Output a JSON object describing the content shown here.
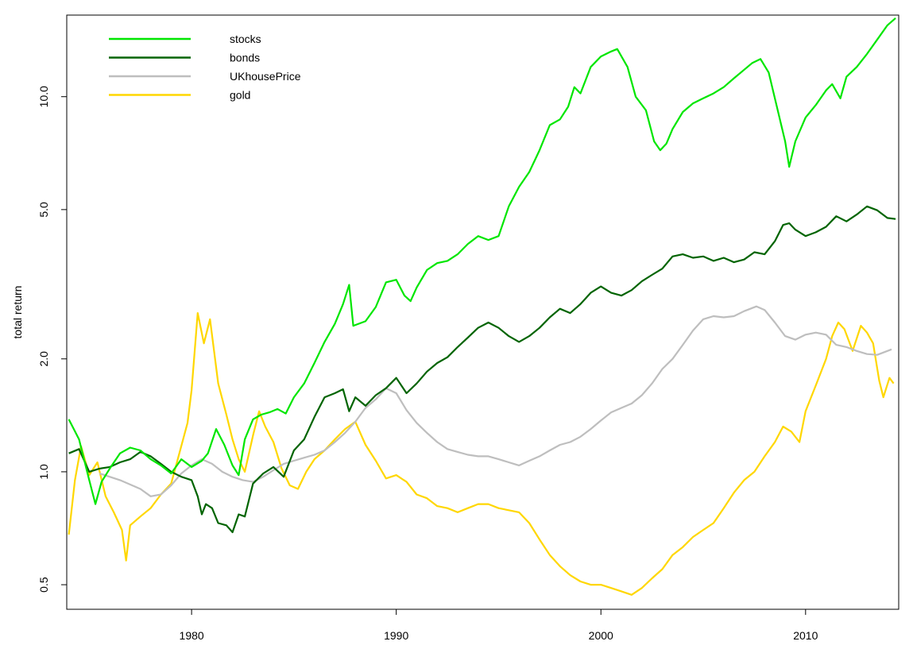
{
  "chart_data": {
    "type": "line",
    "title": "",
    "xlabel": "",
    "ylabel": "total return",
    "y_scale": "log",
    "xlim": [
      1973.9,
      2014.55
    ],
    "ylim": [
      0.43,
      16.5
    ],
    "x_ticks": [
      1980,
      1990,
      2000,
      2010
    ],
    "x_tick_labels": [
      "1980",
      "1990",
      "2000",
      "2010"
    ],
    "y_ticks": [
      0.5,
      1.0,
      2.0,
      5.0,
      10.0
    ],
    "y_tick_labels": [
      "0.5",
      "1.0",
      "2.0",
      "5.0",
      "10.0"
    ],
    "grid": false,
    "legend_position": "top-left",
    "series": [
      {
        "name": "stocks",
        "color": "#00e600",
        "x": [
          1974.0,
          1974.5,
          1975.0,
          1975.3,
          1975.6,
          1976.0,
          1976.5,
          1977.0,
          1977.5,
          1978.0,
          1978.5,
          1979.0,
          1979.5,
          1980.0,
          1980.5,
          1980.8,
          1981.2,
          1981.6,
          1982.0,
          1982.3,
          1982.6,
          1983.0,
          1983.4,
          1983.8,
          1984.2,
          1984.6,
          1985.0,
          1985.5,
          1986.0,
          1986.5,
          1987.0,
          1987.4,
          1987.7,
          1987.9,
          1988.5,
          1989.0,
          1989.5,
          1990.0,
          1990.4,
          1990.7,
          1991.0,
          1991.5,
          1992.0,
          1992.5,
          1993.0,
          1993.5,
          1994.0,
          1994.5,
          1995.0,
          1995.5,
          1996.0,
          1996.5,
          1997.0,
          1997.5,
          1998.0,
          1998.4,
          1998.7,
          1999.0,
          1999.5,
          2000.0,
          2000.5,
          2000.8,
          2001.3,
          2001.7,
          2002.2,
          2002.6,
          2002.9,
          2003.2,
          2003.5,
          2004.0,
          2004.5,
          2005.0,
          2005.5,
          2006.0,
          2006.5,
          2007.0,
          2007.4,
          2007.8,
          2008.2,
          2008.6,
          2009.0,
          2009.2,
          2009.5,
          2010.0,
          2010.5,
          2011.0,
          2011.3,
          2011.7,
          2012.0,
          2012.5,
          2013.0,
          2013.5,
          2014.0,
          2014.4
        ],
        "values": [
          1.38,
          1.22,
          0.95,
          0.82,
          0.94,
          1.02,
          1.12,
          1.16,
          1.14,
          1.08,
          1.04,
          0.99,
          1.08,
          1.03,
          1.07,
          1.12,
          1.3,
          1.18,
          1.04,
          0.98,
          1.22,
          1.38,
          1.42,
          1.44,
          1.47,
          1.43,
          1.58,
          1.72,
          1.95,
          2.22,
          2.48,
          2.8,
          3.15,
          2.45,
          2.52,
          2.75,
          3.2,
          3.25,
          2.95,
          2.85,
          3.1,
          3.45,
          3.6,
          3.65,
          3.8,
          4.05,
          4.25,
          4.15,
          4.25,
          5.1,
          5.75,
          6.3,
          7.2,
          8.4,
          8.7,
          9.4,
          10.6,
          10.2,
          12.0,
          12.8,
          13.2,
          13.4,
          12.0,
          10.0,
          9.2,
          7.6,
          7.2,
          7.5,
          8.2,
          9.1,
          9.6,
          9.9,
          10.2,
          10.6,
          11.2,
          11.8,
          12.3,
          12.6,
          11.6,
          9.4,
          7.6,
          6.5,
          7.6,
          8.8,
          9.5,
          10.4,
          10.8,
          9.9,
          11.3,
          12.0,
          13.0,
          14.2,
          15.5,
          16.2
        ]
      },
      {
        "name": "bonds",
        "color": "#006400",
        "x": [
          1974.0,
          1974.5,
          1975.0,
          1975.5,
          1976.0,
          1976.5,
          1977.0,
          1977.5,
          1978.0,
          1978.5,
          1979.0,
          1979.5,
          1980.0,
          1980.3,
          1980.5,
          1980.7,
          1981.0,
          1981.3,
          1981.7,
          1982.0,
          1982.3,
          1982.6,
          1983.0,
          1983.5,
          1984.0,
          1984.5,
          1985.0,
          1985.5,
          1986.0,
          1986.5,
          1987.0,
          1987.4,
          1987.7,
          1988.0,
          1988.5,
          1989.0,
          1989.5,
          1990.0,
          1990.5,
          1991.0,
          1991.5,
          1992.0,
          1992.5,
          1993.0,
          1993.5,
          1994.0,
          1994.5,
          1995.0,
          1995.5,
          1996.0,
          1996.5,
          1997.0,
          1997.5,
          1998.0,
          1998.5,
          1999.0,
          1999.5,
          2000.0,
          2000.5,
          2001.0,
          2001.5,
          2002.0,
          2002.5,
          2003.0,
          2003.5,
          2004.0,
          2004.5,
          2005.0,
          2005.5,
          2006.0,
          2006.5,
          2007.0,
          2007.5,
          2008.0,
          2008.5,
          2008.9,
          2009.2,
          2009.5,
          2010.0,
          2010.5,
          2011.0,
          2011.5,
          2012.0,
          2012.5,
          2013.0,
          2013.5,
          2014.0,
          2014.4
        ],
        "values": [
          1.12,
          1.15,
          1.0,
          1.02,
          1.03,
          1.06,
          1.08,
          1.13,
          1.1,
          1.05,
          1.0,
          0.97,
          0.95,
          0.86,
          0.77,
          0.82,
          0.8,
          0.73,
          0.72,
          0.69,
          0.77,
          0.76,
          0.93,
          0.99,
          1.03,
          0.97,
          1.14,
          1.22,
          1.4,
          1.58,
          1.62,
          1.66,
          1.45,
          1.58,
          1.5,
          1.6,
          1.67,
          1.78,
          1.62,
          1.72,
          1.85,
          1.95,
          2.02,
          2.15,
          2.28,
          2.42,
          2.5,
          2.42,
          2.3,
          2.22,
          2.3,
          2.42,
          2.58,
          2.72,
          2.65,
          2.8,
          3.0,
          3.12,
          3.0,
          2.95,
          3.05,
          3.22,
          3.35,
          3.48,
          3.75,
          3.8,
          3.72,
          3.75,
          3.65,
          3.72,
          3.62,
          3.68,
          3.85,
          3.8,
          4.12,
          4.55,
          4.6,
          4.42,
          4.25,
          4.35,
          4.5,
          4.8,
          4.65,
          4.85,
          5.1,
          4.98,
          4.75,
          4.72
        ]
      },
      {
        "name": "UKhousePrice",
        "color": "#bebebe",
        "x": [
          1975.5,
          1976.5,
          1977.5,
          1978.0,
          1978.5,
          1979.0,
          1979.5,
          1980.0,
          1980.5,
          1981.0,
          1981.5,
          1982.0,
          1982.5,
          1983.0,
          1983.5,
          1984.0,
          1984.5,
          1985.0,
          1985.5,
          1986.0,
          1986.5,
          1987.0,
          1987.5,
          1988.0,
          1988.5,
          1989.0,
          1989.5,
          1990.0,
          1990.5,
          1991.0,
          1991.5,
          1992.0,
          1992.5,
          1993.0,
          1993.5,
          1994.0,
          1994.5,
          1995.0,
          1995.5,
          1996.0,
          1996.5,
          1997.0,
          1997.5,
          1998.0,
          1998.5,
          1999.0,
          1999.5,
          2000.0,
          2000.5,
          2001.0,
          2001.5,
          2002.0,
          2002.5,
          2003.0,
          2003.5,
          2004.0,
          2004.5,
          2005.0,
          2005.5,
          2006.0,
          2006.5,
          2007.0,
          2007.3,
          2007.6,
          2008.0,
          2008.5,
          2009.0,
          2009.5,
          2010.0,
          2010.5,
          2011.0,
          2011.5,
          2012.0,
          2012.5,
          2013.0,
          2013.5,
          2014.0,
          2014.2
        ],
        "values": [
          0.99,
          0.95,
          0.9,
          0.86,
          0.87,
          0.92,
          0.99,
          1.04,
          1.08,
          1.05,
          1.0,
          0.97,
          0.95,
          0.94,
          0.97,
          1.01,
          1.05,
          1.07,
          1.09,
          1.11,
          1.14,
          1.2,
          1.27,
          1.36,
          1.48,
          1.56,
          1.67,
          1.62,
          1.46,
          1.35,
          1.27,
          1.2,
          1.15,
          1.13,
          1.11,
          1.1,
          1.1,
          1.08,
          1.06,
          1.04,
          1.07,
          1.1,
          1.14,
          1.18,
          1.2,
          1.24,
          1.3,
          1.37,
          1.44,
          1.48,
          1.52,
          1.6,
          1.72,
          1.88,
          2.0,
          2.18,
          2.38,
          2.55,
          2.6,
          2.58,
          2.6,
          2.68,
          2.72,
          2.76,
          2.7,
          2.5,
          2.3,
          2.25,
          2.32,
          2.35,
          2.32,
          2.18,
          2.15,
          2.1,
          2.06,
          2.05,
          2.1,
          2.12
        ]
      },
      {
        "name": "gold",
        "color": "#ffd700",
        "x": [
          1974.0,
          1974.3,
          1974.6,
          1975.0,
          1975.4,
          1975.8,
          1976.2,
          1976.6,
          1976.8,
          1977.0,
          1977.5,
          1978.0,
          1978.5,
          1979.0,
          1979.4,
          1979.8,
          1980.0,
          1980.3,
          1980.6,
          1980.9,
          1981.3,
          1981.7,
          1982.0,
          1982.3,
          1982.6,
          1983.0,
          1983.3,
          1983.6,
          1984.0,
          1984.4,
          1984.8,
          1985.2,
          1985.6,
          1986.0,
          1986.5,
          1987.0,
          1987.5,
          1988.0,
          1988.5,
          1989.0,
          1989.5,
          1990.0,
          1990.5,
          1991.0,
          1991.5,
          1992.0,
          1992.5,
          1993.0,
          1993.5,
          1994.0,
          1994.5,
          1995.0,
          1995.5,
          1996.0,
          1996.5,
          1997.0,
          1997.5,
          1998.0,
          1998.5,
          1999.0,
          1999.5,
          2000.0,
          2000.5,
          2001.0,
          2001.5,
          2002.0,
          2002.5,
          2003.0,
          2003.5,
          2004.0,
          2004.5,
          2005.0,
          2005.5,
          2006.0,
          2006.5,
          2007.0,
          2007.5,
          2008.0,
          2008.5,
          2008.9,
          2009.3,
          2009.7,
          2010.0,
          2010.5,
          2011.0,
          2011.3,
          2011.6,
          2011.9,
          2012.3,
          2012.7,
          2013.0,
          2013.3,
          2013.6,
          2013.8,
          2014.1,
          2014.3
        ],
        "values": [
          0.68,
          0.95,
          1.17,
          0.98,
          1.06,
          0.86,
          0.78,
          0.7,
          0.58,
          0.72,
          0.76,
          0.8,
          0.87,
          0.93,
          1.12,
          1.35,
          1.65,
          2.65,
          2.2,
          2.55,
          1.72,
          1.42,
          1.22,
          1.08,
          1.0,
          1.25,
          1.45,
          1.32,
          1.2,
          1.02,
          0.92,
          0.9,
          1.0,
          1.08,
          1.14,
          1.22,
          1.3,
          1.36,
          1.18,
          1.07,
          0.96,
          0.98,
          0.94,
          0.87,
          0.85,
          0.81,
          0.8,
          0.78,
          0.8,
          0.82,
          0.82,
          0.8,
          0.79,
          0.78,
          0.73,
          0.66,
          0.6,
          0.56,
          0.53,
          0.51,
          0.5,
          0.5,
          0.49,
          0.48,
          0.47,
          0.49,
          0.52,
          0.55,
          0.6,
          0.63,
          0.67,
          0.7,
          0.73,
          0.8,
          0.88,
          0.95,
          1.0,
          1.1,
          1.2,
          1.32,
          1.28,
          1.2,
          1.45,
          1.7,
          2.0,
          2.3,
          2.5,
          2.4,
          2.1,
          2.45,
          2.35,
          2.2,
          1.75,
          1.58,
          1.78,
          1.72
        ]
      }
    ]
  }
}
